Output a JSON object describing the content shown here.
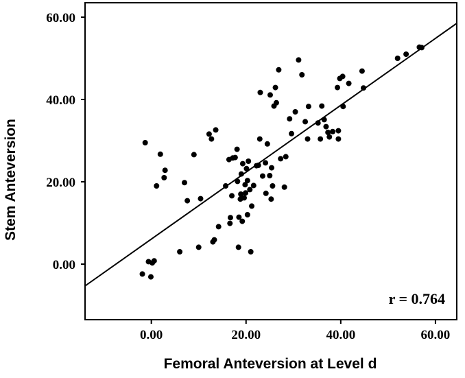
{
  "chart_data": {
    "type": "scatter",
    "xlabel": "Femoral Anteversion at Level d",
    "ylabel": "Stem Anteversion",
    "xlim": [
      -14,
      64.5
    ],
    "ylim": [
      -13.5,
      63.5
    ],
    "xticks": [
      "0.00",
      "20.00",
      "40.00",
      "60.00"
    ],
    "yticks": [
      "0.00",
      "20.00",
      "40.00",
      "60.00"
    ],
    "xtick_values": [
      0,
      20,
      40,
      60
    ],
    "ytick_values": [
      0,
      20,
      40,
      60
    ],
    "annotation": "r = 0.764",
    "grid": false,
    "fit_line": {
      "x": [
        -14,
        64.5
      ],
      "y": [
        -5.3,
        58.5
      ]
    },
    "points": [
      [
        -1.9,
        -2.4
      ],
      [
        -1.3,
        29.5
      ],
      [
        -0.6,
        0.6
      ],
      [
        -0.1,
        -3.1
      ],
      [
        0.2,
        0.3
      ],
      [
        0.6,
        0.8
      ],
      [
        1.1,
        19.0
      ],
      [
        1.9,
        26.7
      ],
      [
        2.7,
        21.0
      ],
      [
        2.9,
        22.8
      ],
      [
        6.0,
        3.0
      ],
      [
        7.0,
        19.8
      ],
      [
        7.6,
        15.4
      ],
      [
        9.0,
        26.6
      ],
      [
        10.0,
        4.1
      ],
      [
        10.4,
        15.9
      ],
      [
        12.2,
        31.6
      ],
      [
        12.7,
        30.4
      ],
      [
        13.0,
        5.4
      ],
      [
        13.3,
        5.9
      ],
      [
        13.6,
        32.6
      ],
      [
        14.2,
        9.1
      ],
      [
        15.7,
        19.0
      ],
      [
        16.4,
        25.4
      ],
      [
        16.6,
        9.9
      ],
      [
        16.7,
        11.3
      ],
      [
        17.0,
        16.6
      ],
      [
        17.2,
        25.8
      ],
      [
        17.7,
        25.9
      ],
      [
        18.1,
        27.9
      ],
      [
        18.2,
        20.1
      ],
      [
        18.4,
        4.1
      ],
      [
        18.5,
        11.4
      ],
      [
        18.8,
        15.8
      ],
      [
        18.9,
        17.0
      ],
      [
        19.0,
        21.9
      ],
      [
        19.1,
        16.2
      ],
      [
        19.2,
        10.4
      ],
      [
        19.3,
        24.4
      ],
      [
        19.6,
        16.1
      ],
      [
        19.8,
        19.3
      ],
      [
        19.9,
        17.3
      ],
      [
        20.1,
        23.2
      ],
      [
        20.3,
        20.3
      ],
      [
        20.3,
        12.0
      ],
      [
        20.5,
        25.0
      ],
      [
        20.8,
        18.1
      ],
      [
        21.0,
        3.0
      ],
      [
        21.2,
        14.1
      ],
      [
        21.6,
        19.1
      ],
      [
        22.2,
        23.9
      ],
      [
        22.6,
        24.0
      ],
      [
        22.9,
        30.4
      ],
      [
        23.0,
        41.7
      ],
      [
        23.5,
        21.4
      ],
      [
        24.1,
        24.6
      ],
      [
        24.2,
        17.2
      ],
      [
        24.5,
        29.2
      ],
      [
        25.0,
        21.5
      ],
      [
        25.1,
        41.1
      ],
      [
        25.3,
        15.8
      ],
      [
        25.4,
        23.4
      ],
      [
        25.6,
        19.0
      ],
      [
        25.9,
        38.4
      ],
      [
        26.2,
        42.9
      ],
      [
        26.4,
        39.2
      ],
      [
        26.9,
        47.2
      ],
      [
        27.3,
        25.6
      ],
      [
        28.1,
        18.7
      ],
      [
        28.4,
        26.1
      ],
      [
        29.2,
        35.3
      ],
      [
        29.6,
        31.7
      ],
      [
        30.4,
        37.0
      ],
      [
        31.1,
        49.6
      ],
      [
        31.8,
        46.0
      ],
      [
        32.5,
        34.6
      ],
      [
        33.0,
        30.4
      ],
      [
        33.2,
        38.3
      ],
      [
        35.2,
        34.3
      ],
      [
        35.7,
        30.4
      ],
      [
        36.0,
        38.4
      ],
      [
        36.5,
        35.1
      ],
      [
        36.9,
        33.4
      ],
      [
        37.3,
        32.0
      ],
      [
        37.6,
        30.9
      ],
      [
        38.3,
        32.2
      ],
      [
        39.3,
        42.9
      ],
      [
        39.5,
        30.4
      ],
      [
        39.5,
        32.4
      ],
      [
        39.8,
        45.1
      ],
      [
        40.4,
        45.6
      ],
      [
        40.5,
        38.3
      ],
      [
        41.7,
        43.9
      ],
      [
        44.5,
        46.9
      ],
      [
        44.8,
        42.8
      ],
      [
        52.0,
        50.0
      ],
      [
        53.8,
        51.0
      ],
      [
        56.6,
        52.7
      ],
      [
        57.1,
        52.6
      ]
    ]
  }
}
